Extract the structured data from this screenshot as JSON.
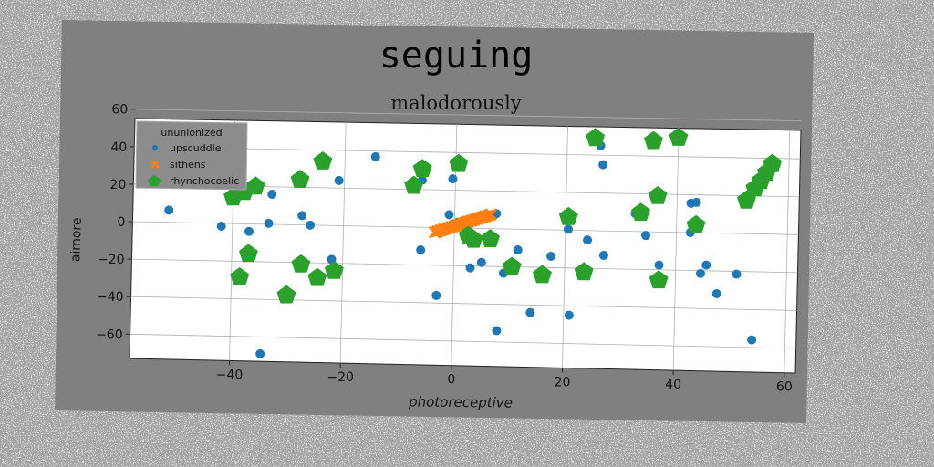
{
  "chart_data": {
    "type": "scatter",
    "title": "seguing",
    "subtitle": "malodorously",
    "xlabel": "photoreceptive",
    "ylabel": "aimore",
    "xlim": [
      -58,
      62
    ],
    "ylim": [
      -73,
      55
    ],
    "xticks": [
      -40,
      -20,
      0,
      20,
      40,
      60
    ],
    "yticks": [
      -60,
      -40,
      -20,
      0,
      20,
      40,
      60
    ],
    "grid": true,
    "legend": {
      "title": "ununionized",
      "position": "top-left",
      "entries": [
        "upscuddle",
        "sithens",
        "rhynchocoelic"
      ]
    },
    "series": [
      {
        "name": "upscuddle",
        "marker": "circle",
        "color": "#1f77b4",
        "points": [
          [
            -51.5,
            6.5
          ],
          [
            -42,
            -1.5
          ],
          [
            -37,
            -4
          ],
          [
            -33,
            16
          ],
          [
            -33.5,
            0.5
          ],
          [
            -34.5,
            -69
          ],
          [
            -27.5,
            5
          ],
          [
            -26,
            0
          ],
          [
            -22,
            -18
          ],
          [
            -21,
            24
          ],
          [
            -14.5,
            37
          ],
          [
            -6,
            25
          ],
          [
            -6,
            -12
          ],
          [
            -3,
            -36
          ],
          [
            -1,
            7
          ],
          [
            -0.5,
            26
          ],
          [
            0.5,
            3
          ],
          [
            3,
            -21
          ],
          [
            5,
            -18
          ],
          [
            7,
            7
          ],
          [
            7.5,
            8
          ],
          [
            8,
            -54
          ],
          [
            9,
            -23.5
          ],
          [
            11.5,
            -11
          ],
          [
            14,
            -44
          ],
          [
            17.5,
            -14
          ],
          [
            20.5,
            0.5
          ],
          [
            21,
            -45
          ],
          [
            24,
            -5
          ],
          [
            26,
            45
          ],
          [
            26.5,
            35
          ],
          [
            27,
            -13
          ],
          [
            32.5,
            9.5
          ],
          [
            34.5,
            -2
          ],
          [
            37,
            -17.5
          ],
          [
            42.5,
            0
          ],
          [
            42.5,
            15.5
          ],
          [
            43.5,
            16
          ],
          [
            44.5,
            -21.5
          ],
          [
            45.5,
            -17
          ],
          [
            47.5,
            -32
          ],
          [
            51,
            -21.5
          ],
          [
            54,
            -56
          ]
        ]
      },
      {
        "name": "sithens",
        "marker": "x",
        "color": "#ff7f0e",
        "points": [
          [
            -3.5,
            -2.5
          ],
          [
            -3,
            -2
          ],
          [
            -2.5,
            -1.5
          ],
          [
            -2,
            -1
          ],
          [
            -1.5,
            -0.5
          ],
          [
            -1,
            0
          ],
          [
            -0.5,
            0.5
          ],
          [
            0,
            1
          ],
          [
            0.5,
            1.5
          ],
          [
            1,
            2
          ],
          [
            1.5,
            2.5
          ],
          [
            2,
            3
          ],
          [
            2.5,
            3.5
          ],
          [
            3,
            4
          ],
          [
            3.5,
            4.5
          ],
          [
            4,
            5
          ],
          [
            4.5,
            5.5
          ],
          [
            5,
            6
          ],
          [
            5.5,
            6.5
          ],
          [
            6,
            7
          ],
          [
            6.5,
            7.5
          ]
        ]
      },
      {
        "name": "rhynchocoelic",
        "marker": "pentagon",
        "color": "#2ca02c",
        "points": [
          [
            -40,
            14
          ],
          [
            -38,
            17
          ],
          [
            -36,
            20
          ],
          [
            -38.5,
            -28.5
          ],
          [
            -37,
            -16
          ],
          [
            -30,
            -37.5
          ],
          [
            -28,
            24
          ],
          [
            -27.5,
            -21
          ],
          [
            -24.5,
            -28
          ],
          [
            -24,
            34
          ],
          [
            -21.5,
            -24
          ],
          [
            -7.5,
            22
          ],
          [
            -6,
            31
          ],
          [
            0.5,
            34
          ],
          [
            2.5,
            -4
          ],
          [
            3.5,
            -6
          ],
          [
            6.5,
            -5.5
          ],
          [
            10.5,
            -20
          ],
          [
            16,
            -24
          ],
          [
            20.5,
            7
          ],
          [
            23.5,
            -22
          ],
          [
            25,
            49
          ],
          [
            33.5,
            10
          ],
          [
            35.5,
            48
          ],
          [
            36.5,
            19
          ],
          [
            37,
            -25.5
          ],
          [
            40,
            50
          ],
          [
            43.5,
            4
          ],
          [
            52.5,
            17.5
          ],
          [
            54,
            24
          ],
          [
            55,
            28
          ],
          [
            56,
            32.5
          ],
          [
            57,
            37
          ]
        ]
      }
    ]
  }
}
